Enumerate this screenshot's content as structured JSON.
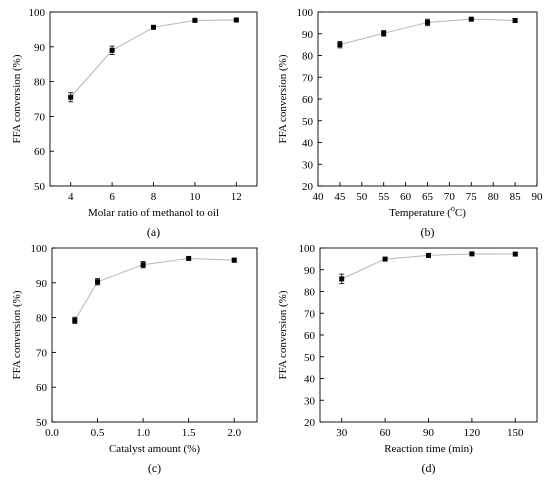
{
  "chart_data": [
    {
      "type": "line",
      "panel_label": "(a)",
      "xlabel": "Molar ratio of methanol to oil",
      "xlabel_sup": "",
      "xlabel_suffix": "",
      "ylabel": "FFA conversion (%)",
      "xlim": [
        3,
        13
      ],
      "ylim": [
        50,
        100
      ],
      "xticks": [
        4,
        6,
        8,
        10,
        12
      ],
      "yticks": [
        50,
        60,
        70,
        80,
        90,
        100
      ],
      "xtick_labels": [
        "4",
        "6",
        "8",
        "10",
        "12"
      ],
      "ytick_labels": [
        "50",
        "60",
        "70",
        "80",
        "90",
        "100"
      ],
      "x": [
        4,
        6,
        8,
        10,
        12
      ],
      "y": [
        75.5,
        89,
        95.6,
        97.6,
        97.7
      ],
      "error": [
        1.3,
        1.2,
        0.4,
        0.4,
        0.3
      ]
    },
    {
      "type": "line",
      "panel_label": "(b)",
      "xlabel": "Temperature (",
      "xlabel_sup": "o",
      "xlabel_suffix": "C)",
      "ylabel": "FFA conversion (%)",
      "xlim": [
        40,
        90
      ],
      "ylim": [
        20,
        100
      ],
      "xticks": [
        40,
        45,
        50,
        55,
        60,
        65,
        70,
        75,
        80,
        85,
        90
      ],
      "yticks": [
        20,
        30,
        40,
        50,
        60,
        70,
        80,
        90,
        100
      ],
      "xtick_labels": [
        "40",
        "45",
        "50",
        "55",
        "60",
        "65",
        "70",
        "75",
        "80",
        "85",
        "90"
      ],
      "ytick_labels": [
        "20",
        "30",
        "40",
        "50",
        "60",
        "70",
        "80",
        "90",
        "100"
      ],
      "x": [
        45,
        55,
        65,
        75,
        85
      ],
      "y": [
        85,
        90.2,
        95.2,
        96.7,
        96.1
      ],
      "error": [
        1.5,
        1.3,
        1.5,
        0.4,
        0.8
      ]
    },
    {
      "type": "line",
      "panel_label": "(c)",
      "xlabel": "Catalyst amount (%)",
      "xlabel_sup": "",
      "xlabel_suffix": "",
      "ylabel": "FFA conversion (%)",
      "xlim": [
        0,
        2.25
      ],
      "ylim": [
        50,
        100
      ],
      "xticks": [
        0,
        0.5,
        1.0,
        1.5,
        2.0
      ],
      "yticks": [
        50,
        60,
        70,
        80,
        90,
        100
      ],
      "xtick_labels": [
        "0.0",
        "0.5",
        "1.0",
        "1.5",
        "2.0"
      ],
      "ytick_labels": [
        "50",
        "60",
        "70",
        "80",
        "90",
        "100"
      ],
      "x": [
        0.25,
        0.5,
        1.0,
        1.5,
        2.0
      ],
      "y": [
        79.2,
        90.3,
        95.2,
        97.0,
        96.5
      ],
      "error": [
        0.9,
        0.9,
        0.9,
        0.3,
        0.6
      ]
    },
    {
      "type": "line",
      "panel_label": "(d)",
      "xlabel": "Reaction time (min)",
      "xlabel_sup": "",
      "xlabel_suffix": "",
      "ylabel": "FFA conversion (%)",
      "xlim": [
        15,
        165
      ],
      "ylim": [
        20,
        100
      ],
      "xticks": [
        30,
        60,
        90,
        120,
        150
      ],
      "yticks": [
        20,
        30,
        40,
        50,
        60,
        70,
        80,
        90,
        100
      ],
      "xtick_labels": [
        "30",
        "60",
        "90",
        "120",
        "150"
      ],
      "ytick_labels": [
        "20",
        "30",
        "40",
        "50",
        "60",
        "70",
        "80",
        "90",
        "100"
      ],
      "x": [
        30,
        60,
        90,
        120,
        150
      ],
      "y": [
        85.8,
        94.9,
        96.6,
        97.3,
        97.2
      ],
      "error": [
        2.2,
        0.5,
        0.9,
        0.4,
        0.3
      ]
    }
  ]
}
